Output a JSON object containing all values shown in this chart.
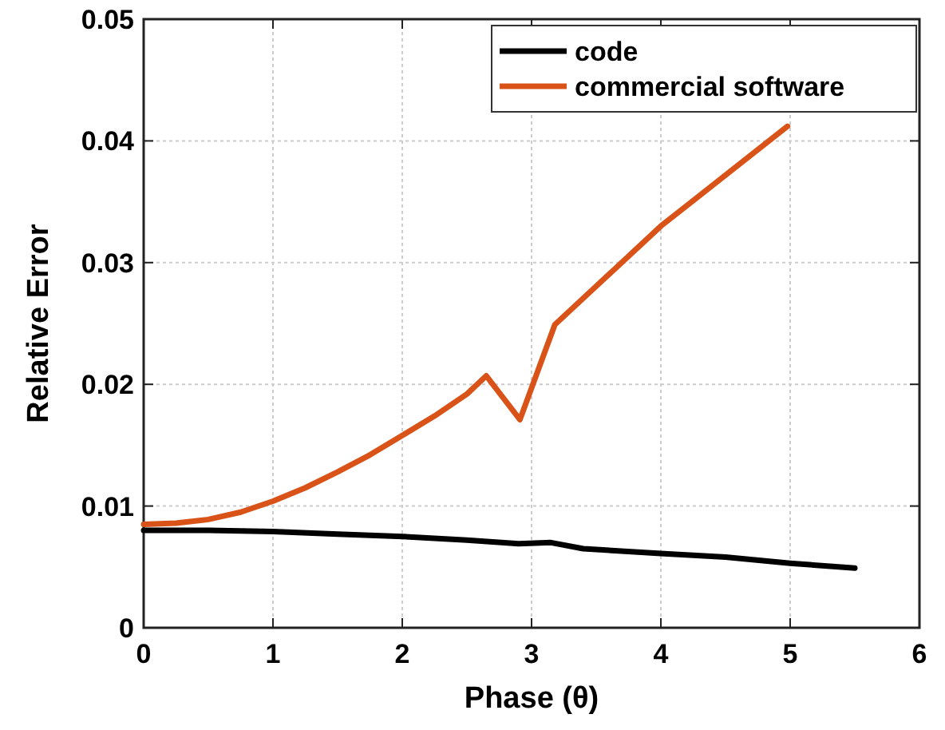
{
  "chart_data": {
    "type": "line",
    "xlabel": "Phase (θ)",
    "ylabel": "Relative Error",
    "xlim": [
      0,
      6
    ],
    "xticks": [
      0,
      1,
      2,
      3,
      4,
      5,
      6
    ],
    "ylim": [
      0,
      0.05
    ],
    "yticks": [
      0,
      0.01,
      0.02,
      0.03,
      0.04,
      0.05
    ],
    "grid": true,
    "legend": "top right",
    "line_style": "solid",
    "marker": "none",
    "series": [
      {
        "name": "code",
        "color": "#000000",
        "x": [
          0,
          0.5,
          1,
          1.5,
          2,
          2.5,
          2.9,
          3.15,
          3.4,
          4,
          4.5,
          5,
          5.5
        ],
        "values": [
          0.008,
          0.008,
          0.0079,
          0.0077,
          0.0075,
          0.0072,
          0.0069,
          0.007,
          0.0065,
          0.0061,
          0.0058,
          0.0053,
          0.0049
        ]
      },
      {
        "name": "commercial software",
        "color": "#d95319",
        "x": [
          0,
          0.25,
          0.5,
          0.75,
          1,
          1.25,
          1.5,
          1.75,
          2,
          2.25,
          2.5,
          2.65,
          2.91,
          3.18,
          4,
          4.98
        ],
        "values": [
          0.0085,
          0.0086,
          0.0089,
          0.0095,
          0.0104,
          0.0115,
          0.0128,
          0.0142,
          0.0158,
          0.0174,
          0.0192,
          0.0207,
          0.0171,
          0.0249,
          0.033,
          0.0412
        ]
      }
    ]
  }
}
